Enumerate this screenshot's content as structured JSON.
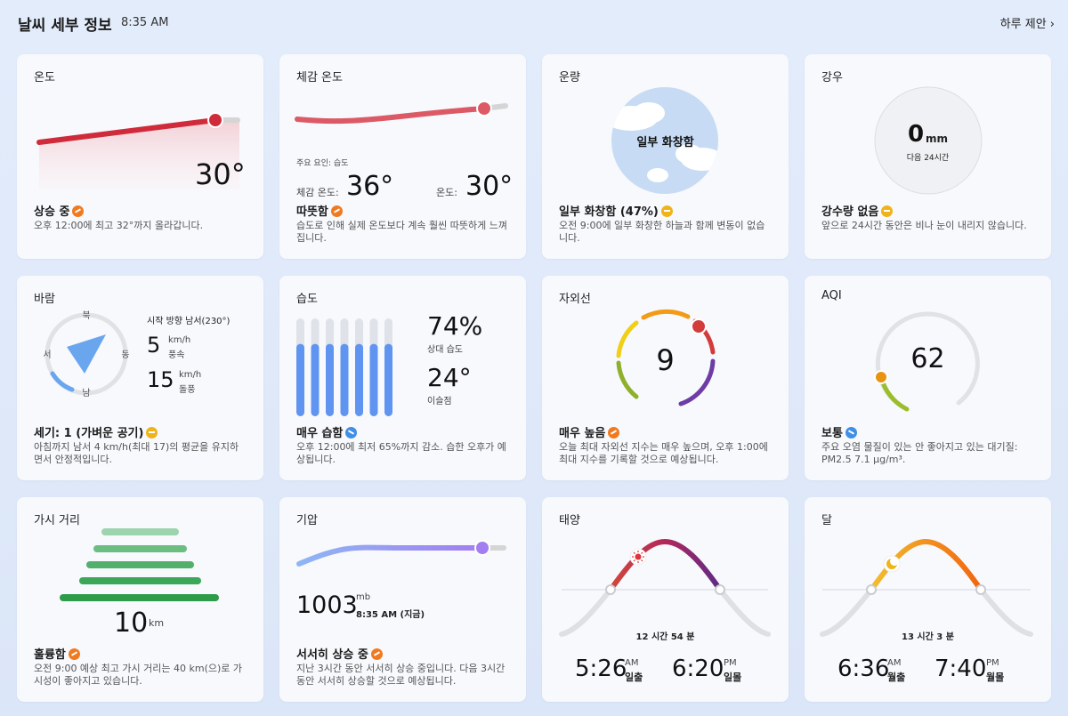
{
  "header": {
    "title": "날씨 세부 정보",
    "time": "8:35 AM",
    "suggest": "하루 제안 ›"
  },
  "temperature": {
    "title": "온도",
    "value": "30°",
    "head": "상승 중",
    "desc": "오후 12:00에 최고 32°까지 올라갑니다."
  },
  "feels": {
    "title": "체감 온도",
    "factor": "주요 요인: 습도",
    "feels_label": "체감 온도:",
    "feels_value": "36°",
    "temp_label": "온도:",
    "temp_value": "30°",
    "head": "따뜻함",
    "desc": "습도로 인해 실제 온도보다 계속 훨씬 따뜻하게 느껴집니다."
  },
  "cloud": {
    "title": "운량",
    "center": "일부 화창함",
    "head": "일부 화창함 (47%)",
    "desc": "오전 9:00에 일부 화창한 하늘과 함께 변동이 없습니다.",
    "percent": 47
  },
  "rain": {
    "title": "강우",
    "value": "0",
    "unit": "mm",
    "period": "다음 24시간",
    "head": "강수량 없음",
    "desc": "앞으로 24시간 동안은 비나 눈이 내리지 않습니다."
  },
  "wind": {
    "title": "바람",
    "north": "북",
    "south": "남",
    "east": "동",
    "west": "서",
    "direction": "시작 방향 남서(230°)",
    "speed": "5",
    "speed_unit": "km/h",
    "speed_label": "풍속",
    "gust": "15",
    "gust_unit": "km/h",
    "gust_label": "돌풍",
    "head": "세기: 1 (가벼운 공기)",
    "desc": "아침까지 남서 4 km/h(최대 17)의 평균을 유지하면서 안정적입니다."
  },
  "humidity": {
    "title": "습도",
    "value": "74%",
    "label": "상대 습도",
    "dew": "24°",
    "dew_label": "이슬점",
    "head": "매우 습함",
    "desc": "오후 12:00에 최저 65%까지 감소. 습한 오후가 예상됩니다.",
    "bars": [
      0.74,
      0.74,
      0.74,
      0.74,
      0.74,
      0.74,
      0.74
    ]
  },
  "uv": {
    "title": "자외선",
    "value": "9",
    "head": "매우 높음",
    "desc": "오늘 최대 자외선 지수는 매우 높으며, 오후 1:00에 최대 지수를 기록할 것으로 예상됩니다."
  },
  "aqi": {
    "title": "AQI",
    "value": "62",
    "head": "보통",
    "desc": "주요 오염 물질이 있는 안 좋아지고 있는 대기질: PM2.5 7.1 μg/m³."
  },
  "visibility": {
    "title": "가시 거리",
    "value": "10",
    "unit": "km",
    "head": "훌륭함",
    "desc": "오전 9:00 예상 최고 가시 거리는 40 km(으)로 가시성이 좋아지고 있습니다."
  },
  "pressure": {
    "title": "기압",
    "value": "1003",
    "unit": "mb",
    "time": "8:35 AM (지금)",
    "head": "서서히 상승 중",
    "desc": "지난 3시간 동안 서서히 상승 중입니다. 다음 3시간 동안 서서히 상승할 것으로 예상됩니다."
  },
  "sun": {
    "title": "태양",
    "duration": "12 시간 54 분",
    "rise": "5:26",
    "rise_ampm": "AM",
    "rise_label": "일출",
    "set": "6:20",
    "set_ampm": "PM",
    "set_label": "일몰"
  },
  "moon": {
    "title": "달",
    "duration": "13 시간 3 분",
    "rise": "6:36",
    "rise_ampm": "AM",
    "rise_label": "월출",
    "set": "7:40",
    "set_ampm": "PM",
    "set_label": "월몰"
  },
  "colors": {
    "temp": "#cf2b3b",
    "feels": "#d9505f",
    "uv_orange": "#f39a16",
    "pressure": "#a37ef0",
    "visibility": "#2e9b4a"
  }
}
